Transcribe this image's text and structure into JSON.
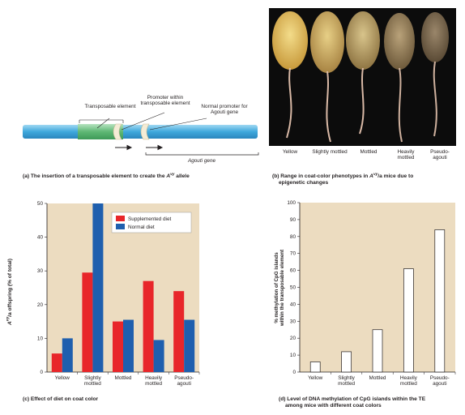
{
  "panel_a": {
    "label_te": "Transposable element",
    "label_promoter_te": "Promoter within transposable element",
    "label_normal_promoter": "Normal promoter for Agouti gene",
    "label_gene": "Agouti gene",
    "caption_prefix": "(a) The insertion of a transposable element to create the ",
    "caption_allele_base": "A",
    "caption_allele_sup": "vy",
    "caption_suffix": " allele",
    "colors": {
      "dna": "#6ec3e8",
      "te": "#8fd19e",
      "promoter": "#f4ecd6"
    }
  },
  "panel_b": {
    "phenotypes": [
      "Yellow",
      "Slightly mottled",
      "Mottled",
      "Heavily mottled",
      "Pseudo-agouti"
    ],
    "caption_line1_prefix": "(b) Range in coat-color phenotypes in ",
    "caption_line1_allele_base": "A",
    "caption_line1_allele_sup": "vy",
    "caption_line1_suffix": "/a mice due to",
    "caption_line2": "epigenetic changes"
  },
  "panel_c": {
    "ylabel_base": "A",
    "ylabel_sup": "vy",
    "ylabel_rest": "/a offspring (% of total)",
    "caption": "(c) Effect of diet on coat color",
    "background": "#ecdcc0",
    "series_colors": [
      "#e8262a",
      "#1f5fae"
    ]
  },
  "panel_d": {
    "ylabel_line1": "% methylation of CpG islands",
    "ylabel_line2": "within the transposable element",
    "caption_line1": "(d) Level of DNA methylation of CpG islands within the TE",
    "caption_line2": "among mice with different coat colors",
    "background": "#ecdcc0",
    "bar_color": "#ffffff"
  },
  "chart_data": [
    {
      "type": "bar",
      "categories": [
        "Yellow",
        "Slightly mottled",
        "Mottled",
        "Heavily mottled",
        "Pseudo-agouti"
      ],
      "series": [
        {
          "name": "Supplemented diet",
          "values": [
            5.5,
            29.5,
            15,
            27,
            24
          ]
        },
        {
          "name": "Normal diet",
          "values": [
            10,
            50,
            15.5,
            9.5,
            15.5
          ]
        }
      ],
      "title": "",
      "xlabel": "",
      "ylabel": "Avy/a offspring (% of total)",
      "ylim": [
        0,
        50
      ],
      "yticks": [
        0,
        10,
        20,
        30,
        40,
        50
      ],
      "legend": "top-right",
      "grid": false
    },
    {
      "type": "bar",
      "categories": [
        "Yellow",
        "Slightly mottled",
        "Mottled",
        "Heavily mottled",
        "Pseudo-agouti"
      ],
      "values": [
        6,
        12,
        25,
        61,
        84
      ],
      "title": "",
      "xlabel": "",
      "ylabel": "% methylation of CpG islands within the transposable element",
      "ylim": [
        0,
        100
      ],
      "yticks": [
        0,
        10,
        20,
        30,
        40,
        50,
        60,
        70,
        80,
        90,
        100
      ],
      "grid": false
    }
  ]
}
